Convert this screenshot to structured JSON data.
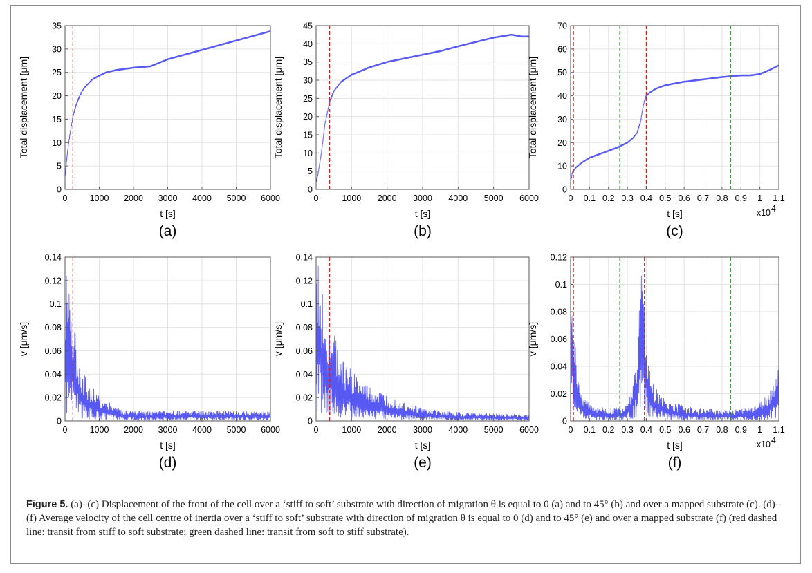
{
  "figure": {
    "caption_label": "Figure 5.",
    "caption_text": "(a)–(c) Displacement of the front of the cell over a ‘stiff to soft’ substrate with direction of migration θ is equal to 0 (a) and to 45° (b) and over a mapped substrate (c). (d)–(f) Average velocity of the cell centre of inertia over a ‘stiff to soft’ substrate with direction of migration θ is equal to 0 (d) and to 45° (e) and over a mapped substrate (f) (red dashed line: transit from stiff to soft substrate; green dashed line: transit from soft to stiff substrate)."
  },
  "colors": {
    "series": "#3b3bf0",
    "red_line": "#d62020",
    "green_line": "#2a8a2a",
    "grid": "#e3e3e3"
  },
  "chart_data": [
    {
      "panel": "(a)",
      "type": "line",
      "xlabel": "t [s]",
      "ylabel": "Total displacement [μm]",
      "xlim": [
        0,
        6000
      ],
      "ylim": [
        0,
        35
      ],
      "xticks": [
        0,
        1000,
        2000,
        3000,
        4000,
        5000,
        6000
      ],
      "xtick_labels": [
        "0",
        "1000",
        "2000",
        "3000",
        "4000",
        "5000",
        "6000"
      ],
      "yticks": [
        0,
        5,
        10,
        15,
        20,
        25,
        30,
        35
      ],
      "ytick_labels": [
        "0",
        "5",
        "10",
        "15",
        "20",
        "25",
        "30",
        "35"
      ],
      "x_multiplier": "",
      "red_lines": [
        230
      ],
      "green_lines": [],
      "series": [
        {
          "x": [
            0,
            30,
            80,
            150,
            230,
            300,
            400,
            500,
            600,
            800,
            1000,
            1200,
            1500,
            2000,
            2500,
            3000,
            3500,
            4000,
            4500,
            5000,
            5500,
            6000
          ],
          "values": [
            2.5,
            5,
            8.5,
            12,
            15.5,
            17.5,
            19.5,
            21,
            22,
            23.5,
            24.3,
            25,
            25.5,
            26,
            26.3,
            27.8,
            28.8,
            29.8,
            30.8,
            31.8,
            32.8,
            33.8
          ]
        }
      ]
    },
    {
      "panel": "(b)",
      "type": "line",
      "xlabel": "t [s]",
      "ylabel": "Total displacement [μm]",
      "xlim": [
        0,
        6000
      ],
      "ylim": [
        0,
        45
      ],
      "xticks": [
        0,
        1000,
        2000,
        3000,
        4000,
        5000,
        6000
      ],
      "xtick_labels": [
        "0",
        "1000",
        "2000",
        "3000",
        "4000",
        "5000",
        "6000"
      ],
      "yticks": [
        0,
        5,
        10,
        15,
        20,
        25,
        30,
        35,
        40,
        45
      ],
      "ytick_labels": [
        "0",
        "5",
        "10",
        "15",
        "20",
        "25",
        "30",
        "35",
        "40",
        "45"
      ],
      "x_multiplier": "",
      "red_lines": [
        380
      ],
      "green_lines": [],
      "series": [
        {
          "x": [
            0,
            50,
            150,
            250,
            380,
            500,
            700,
            1000,
            1500,
            2000,
            2500,
            3000,
            3500,
            4000,
            4500,
            5000,
            5500,
            5800,
            6000
          ],
          "values": [
            2,
            4,
            10,
            18,
            24,
            27,
            29.5,
            31.5,
            33.5,
            35,
            36,
            37,
            38,
            39.3,
            40.5,
            41.7,
            42.5,
            42,
            42
          ]
        }
      ]
    },
    {
      "panel": "(c)",
      "type": "line",
      "xlabel": "t [s]",
      "ylabel": "Total displacement [μm]",
      "xlim": [
        0,
        1.1
      ],
      "ylim": [
        0,
        70
      ],
      "xticks": [
        0,
        0.1,
        0.2,
        0.3,
        0.4,
        0.5,
        0.6,
        0.7,
        0.8,
        0.9,
        1,
        1.1
      ],
      "xtick_labels": [
        "0",
        "0.1",
        "0.2",
        "0.3",
        "0.4",
        "0.5",
        "0.6",
        "0.7",
        "0.8",
        "0.9",
        "1",
        "1.1"
      ],
      "yticks": [
        0,
        10,
        20,
        30,
        40,
        50,
        60,
        70
      ],
      "ytick_labels": [
        "0",
        "10",
        "20",
        "30",
        "40",
        "50",
        "60",
        "70"
      ],
      "x_multiplier": "x10",
      "x_multiplier_exp": "4",
      "red_lines": [
        0.015,
        0.4
      ],
      "green_lines": [
        0.26,
        0.845
      ],
      "series": [
        {
          "x": [
            0,
            0.01,
            0.03,
            0.06,
            0.1,
            0.15,
            0.2,
            0.25,
            0.3,
            0.33,
            0.35,
            0.37,
            0.38,
            0.39,
            0.4,
            0.42,
            0.45,
            0.5,
            0.6,
            0.7,
            0.8,
            0.9,
            0.95,
            1.0,
            1.05,
            1.1
          ],
          "values": [
            3,
            7.5,
            9.5,
            11.5,
            13.5,
            15,
            16.5,
            18,
            20,
            22,
            24,
            29,
            34,
            38,
            40,
            41.5,
            43,
            44.5,
            46,
            47,
            48,
            48.7,
            48.7,
            49.3,
            51,
            53
          ]
        }
      ]
    },
    {
      "panel": "(d)",
      "type": "line",
      "xlabel": "t [s]",
      "ylabel": "v [μm/s]",
      "xlim": [
        0,
        6000
      ],
      "ylim": [
        0,
        0.14
      ],
      "xticks": [
        0,
        1000,
        2000,
        3000,
        4000,
        5000,
        6000
      ],
      "xtick_labels": [
        "0",
        "1000",
        "2000",
        "3000",
        "4000",
        "5000",
        "6000"
      ],
      "yticks": [
        0,
        0.02,
        0.04,
        0.06,
        0.08,
        0.1,
        0.12,
        0.14
      ],
      "ytick_labels": [
        "0",
        "0.02",
        "0.04",
        "0.06",
        "0.08",
        "0.1",
        "0.12",
        "0.14"
      ],
      "x_multiplier": "",
      "red_lines": [
        230
      ],
      "green_lines": [],
      "series": [
        {
          "x": [
            0,
            100,
            200,
            300,
            500,
            700,
            1000,
            1300,
            1600,
            2000,
            2500,
            3000,
            4000,
            5000,
            6000
          ],
          "values": [
            0.12,
            0.115,
            0.1,
            0.07,
            0.04,
            0.03,
            0.02,
            0.015,
            0.01,
            0.008,
            0.008,
            0.008,
            0.008,
            0.008,
            0.008
          ]
        }
      ]
    },
    {
      "panel": "(e)",
      "type": "line",
      "xlabel": "t [s]",
      "ylabel": "v [μm/s]",
      "xlim": [
        0,
        6000
      ],
      "ylim": [
        0,
        0.14
      ],
      "xticks": [
        0,
        1000,
        2000,
        3000,
        4000,
        5000,
        6000
      ],
      "xtick_labels": [
        "0",
        "1000",
        "2000",
        "3000",
        "4000",
        "5000",
        "6000"
      ],
      "yticks": [
        0,
        0.02,
        0.04,
        0.06,
        0.08,
        0.1,
        0.12,
        0.14
      ],
      "ytick_labels": [
        "0",
        "0.02",
        "0.04",
        "0.06",
        "0.08",
        "0.1",
        "0.12",
        "0.14"
      ],
      "x_multiplier": "",
      "red_lines": [
        380
      ],
      "green_lines": [],
      "series": [
        {
          "x": [
            0,
            100,
            200,
            380,
            500,
            700,
            1000,
            1300,
            1600,
            2000,
            2500,
            3000,
            3500,
            4000,
            5000,
            6000
          ],
          "values": [
            0.125,
            0.12,
            0.1,
            0.08,
            0.07,
            0.05,
            0.04,
            0.03,
            0.025,
            0.02,
            0.015,
            0.01,
            0.008,
            0.007,
            0.006,
            0.005
          ]
        }
      ]
    },
    {
      "panel": "(f)",
      "type": "line",
      "xlabel": "t [s]",
      "ylabel": "v [μm/s]",
      "xlim": [
        0,
        1.1
      ],
      "ylim": [
        0,
        0.12
      ],
      "xticks": [
        0,
        0.1,
        0.2,
        0.3,
        0.4,
        0.5,
        0.6,
        0.7,
        0.8,
        0.9,
        1,
        1.1
      ],
      "xtick_labels": [
        "0",
        "0.1",
        "0.2",
        "0.3",
        "0.4",
        "0.5",
        "0.6",
        "0.7",
        "0.8",
        "0.9",
        "1",
        "1.1"
      ],
      "yticks": [
        0,
        0.02,
        0.04,
        0.06,
        0.08,
        0.1,
        0.12
      ],
      "ytick_labels": [
        "0",
        "0.02",
        "0.04",
        "0.06",
        "0.08",
        "0.1",
        "0.12"
      ],
      "x_multiplier": "x10",
      "x_multiplier_exp": "4",
      "red_lines": [
        0.015,
        0.39
      ],
      "green_lines": [
        0.26,
        0.845
      ],
      "series": [
        {
          "x": [
            0,
            0.01,
            0.03,
            0.06,
            0.1,
            0.2,
            0.28,
            0.32,
            0.35,
            0.37,
            0.38,
            0.39,
            0.41,
            0.44,
            0.5,
            0.6,
            0.7,
            0.8,
            0.9,
            1.0,
            1.05,
            1.08,
            1.1
          ],
          "values": [
            0.1,
            0.085,
            0.04,
            0.02,
            0.012,
            0.008,
            0.01,
            0.02,
            0.05,
            0.09,
            0.115,
            0.08,
            0.04,
            0.025,
            0.015,
            0.01,
            0.008,
            0.008,
            0.008,
            0.012,
            0.02,
            0.03,
            0.035
          ]
        }
      ]
    }
  ]
}
